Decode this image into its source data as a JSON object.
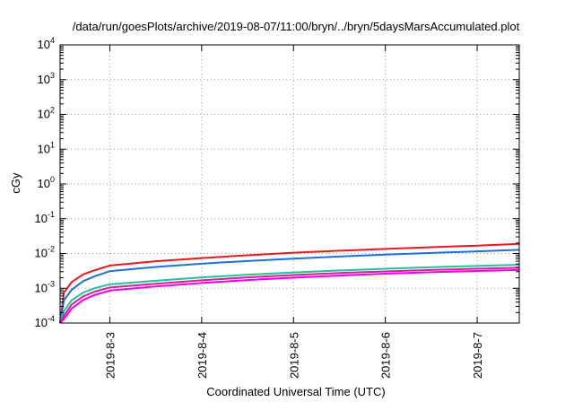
{
  "chart_data": {
    "type": "line",
    "title": "/data/run/goesPlots/archive/2019-08-07/11:00/bryn/../bryn/5daysMarsAccumulated.plot",
    "xlabel": "Coordinated Universal Time (UTC)",
    "ylabel": "cGy",
    "yscale": "log",
    "ylim": [
      0.0001,
      10000
    ],
    "xlim": [
      "2019-08-02 11:00",
      "2019-08-07 11:00"
    ],
    "grid": true,
    "x_ticks": [
      "2019-8-3",
      "2019-8-4",
      "2019-8-5",
      "2019-8-6",
      "2019-8-7"
    ],
    "y_ticks": [
      {
        "base": "10",
        "exp": "-4"
      },
      {
        "base": "10",
        "exp": "-3"
      },
      {
        "base": "10",
        "exp": "-2"
      },
      {
        "base": "10",
        "exp": "-1"
      },
      {
        "base": "10",
        "exp": "0"
      },
      {
        "base": "10",
        "exp": "1"
      },
      {
        "base": "10",
        "exp": "2"
      },
      {
        "base": "10",
        "exp": "3"
      },
      {
        "base": "10",
        "exp": "4"
      }
    ],
    "x": [
      "2019-08-02 11:00",
      "2019-08-02 12:00",
      "2019-08-02 14:00",
      "2019-08-02 17:00",
      "2019-08-02 20:00",
      "2019-08-03 00:00",
      "2019-08-03 12:00",
      "2019-08-04 00:00",
      "2019-08-04 12:00",
      "2019-08-05 00:00",
      "2019-08-05 12:00",
      "2019-08-06 00:00",
      "2019-08-06 12:00",
      "2019-08-07 00:00",
      "2019-08-07 11:00"
    ],
    "series": [
      {
        "color": "#e41a1c",
        "values": [
          0.0001,
          0.00075,
          0.0015,
          0.0025,
          0.0033,
          0.0045,
          0.006,
          0.0074,
          0.0089,
          0.0105,
          0.012,
          0.0136,
          0.0152,
          0.0168,
          0.019
        ]
      },
      {
        "color": "#1f6fe0",
        "values": [
          0.0001,
          0.00045,
          0.0009,
          0.0016,
          0.0022,
          0.0031,
          0.0041,
          0.0051,
          0.0061,
          0.0071,
          0.0082,
          0.0093,
          0.0104,
          0.0115,
          0.0128
        ]
      },
      {
        "color": "#20c0a0",
        "values": [
          0.0001,
          0.00022,
          0.00045,
          0.00075,
          0.001,
          0.0013,
          0.00165,
          0.00205,
          0.00245,
          0.00285,
          0.00325,
          0.00365,
          0.00405,
          0.0044,
          0.00475
        ]
      },
      {
        "color": "#d62090",
        "values": [
          0.0001,
          0.00016,
          0.00034,
          0.00058,
          0.0008,
          0.00105,
          0.00135,
          0.0017,
          0.00205,
          0.0024,
          0.00275,
          0.00305,
          0.00335,
          0.00365,
          0.0039
        ]
      },
      {
        "color": "#ee00ee",
        "values": [
          0.0001,
          0.00013,
          0.00026,
          0.00046,
          0.00064,
          0.00086,
          0.00113,
          0.00142,
          0.00172,
          0.00202,
          0.00232,
          0.00262,
          0.0029,
          0.00315,
          0.00335
        ]
      }
    ]
  }
}
